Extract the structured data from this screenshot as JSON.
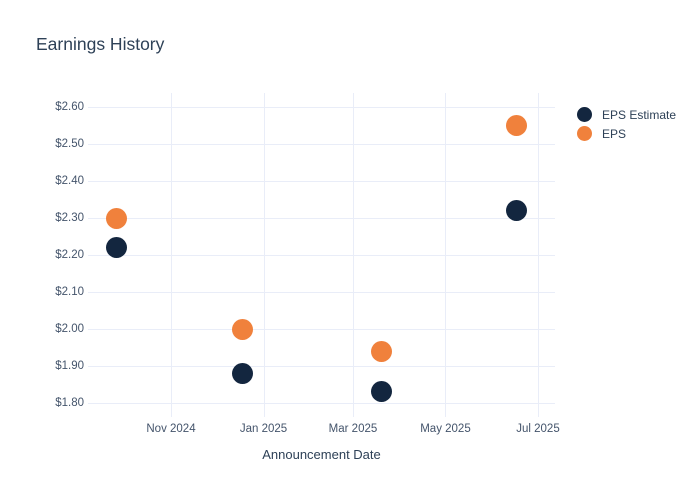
{
  "chart": {
    "title": "Earnings History",
    "x_axis_title": "Announcement Date"
  },
  "legend": {
    "items": [
      {
        "label": "EPS Estimate",
        "color": "#13263f"
      },
      {
        "label": "EPS",
        "color": "#f0813c"
      }
    ]
  },
  "colors": {
    "eps_estimate": "#13263f",
    "eps": "#f0813c",
    "gridline": "#e9edf8",
    "title_text": "#2e4157",
    "tick_text": "#44546b",
    "background": "#ffffff"
  },
  "chart_data": {
    "type": "scatter",
    "title": "Earnings History",
    "xlabel": "Announcement Date",
    "ylabel": "",
    "grid": true,
    "legend_position": "top-right",
    "x": [
      "2024-09-26",
      "2024-12-18",
      "2025-03-20",
      "2025-06-17"
    ],
    "series": [
      {
        "name": "EPS Estimate",
        "color": "#13263f",
        "values": [
          2.22,
          1.88,
          1.83,
          2.32
        ]
      },
      {
        "name": "EPS",
        "color": "#f0813c",
        "values": [
          2.3,
          2.0,
          1.94,
          2.55
        ]
      }
    ],
    "y_ticks": [
      {
        "label": "$1.80",
        "value": 1.8
      },
      {
        "label": "$1.90",
        "value": 1.9
      },
      {
        "label": "$2.00",
        "value": 2.0
      },
      {
        "label": "$2.10",
        "value": 2.1
      },
      {
        "label": "$2.20",
        "value": 2.2
      },
      {
        "label": "$2.30",
        "value": 2.3
      },
      {
        "label": "$2.40",
        "value": 2.4
      },
      {
        "label": "$2.50",
        "value": 2.5
      },
      {
        "label": "$2.60",
        "value": 2.6
      },
      {
        "label": "$2.60",
        "value": 2.6
      }
    ],
    "x_ticks": [
      {
        "label": "Nov 2024",
        "date": "2024-11-01"
      },
      {
        "label": "Jan 2025",
        "date": "2025-01-01"
      },
      {
        "label": "Mar 2025",
        "date": "2025-03-01"
      },
      {
        "label": "May 2025",
        "date": "2025-05-01"
      },
      {
        "label": "Jul 2025",
        "date": "2025-07-01"
      }
    ],
    "ylim": [
      1.76,
      2.64
    ]
  }
}
